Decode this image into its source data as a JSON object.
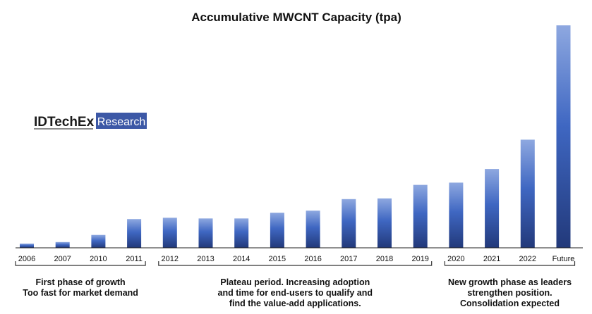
{
  "chart_data": {
    "type": "bar",
    "title": "Accumulative MWCNT Capacity (tpa)",
    "xlabel": "",
    "ylabel": "",
    "ylim": [
      0,
      100
    ],
    "categories": [
      "2006",
      "2007",
      "2010",
      "2011",
      "2012",
      "2013",
      "2014",
      "2015",
      "2016",
      "2017",
      "2018",
      "2019",
      "2020",
      "2021",
      "2022",
      "Future"
    ],
    "values": [
      1.9,
      2.6,
      5.8,
      12.9,
      13.5,
      13.2,
      13.2,
      15.8,
      16.7,
      21.9,
      22.2,
      28.3,
      29.3,
      35.4,
      48.6,
      100
    ],
    "colors": {
      "bar_top": "#8ea8e0",
      "bar_mid": "#3f67c2",
      "bar_bottom": "#22397a",
      "axis": "#222222",
      "bracket": "#333333"
    },
    "phases": [
      {
        "first": 0,
        "last": 3,
        "lines": [
          "First phase of growth",
          "Too fast for market demand"
        ]
      },
      {
        "first": 4,
        "last": 11,
        "lines": [
          "Plateau period. Increasing adoption",
          "and time for end-users to qualify and",
          "find the value-add applications."
        ]
      },
      {
        "first": 12,
        "last": 15,
        "lines": [
          "New growth phase as leaders",
          "strengthen position.",
          "Consolidation expected"
        ]
      }
    ]
  },
  "logo": {
    "name": "IDTechEx",
    "badge": "Research",
    "badge_color": "#3c58a6"
  }
}
